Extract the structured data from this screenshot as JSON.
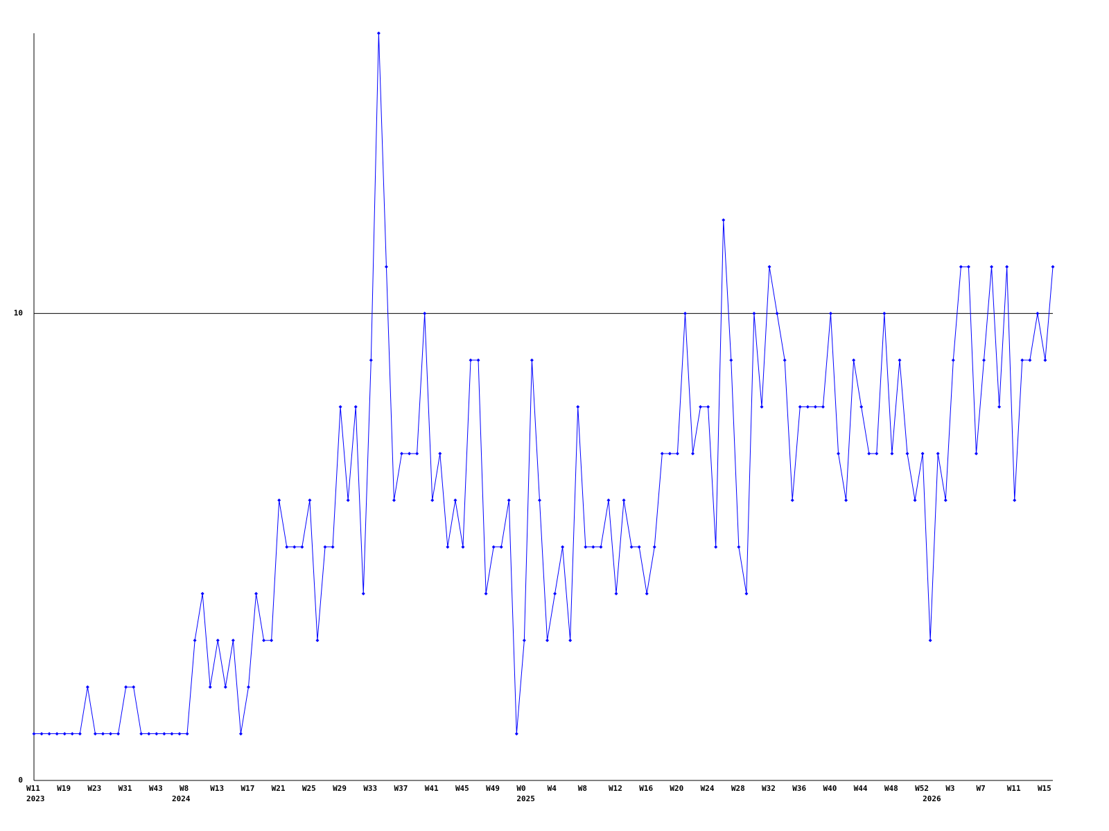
{
  "chart_data": {
    "type": "line",
    "categories": [
      "W11",
      null,
      null,
      null,
      "W19",
      null,
      null,
      null,
      "W23",
      null,
      null,
      null,
      "W31",
      null,
      null,
      null,
      "W43",
      null,
      null,
      null,
      "W8",
      null,
      null,
      null,
      "W13",
      null,
      null,
      null,
      "W17",
      null,
      null,
      null,
      "W21",
      null,
      null,
      null,
      "W25",
      null,
      null,
      null,
      "W29",
      null,
      null,
      null,
      "W33",
      null,
      null,
      null,
      "W37",
      null,
      null,
      null,
      "W41",
      null,
      null,
      null,
      "W45",
      null,
      null,
      null,
      "W49",
      null,
      null,
      null,
      "W0",
      null,
      null,
      null,
      "W4",
      null,
      null,
      null,
      "W8",
      null,
      null,
      null,
      "W12",
      null,
      null,
      null,
      "W16",
      null,
      null,
      null,
      "W20",
      null,
      null,
      null,
      "W24",
      null,
      null,
      null,
      "W28",
      null,
      null,
      null,
      "W32",
      null,
      null,
      null,
      "W36",
      null,
      null,
      null,
      "W40",
      null,
      null,
      null,
      "W44",
      null,
      null,
      null,
      "W48",
      null,
      null,
      null,
      "W52",
      null,
      null,
      null,
      "W3",
      null,
      null,
      null,
      "W7",
      null,
      null,
      null,
      "W11",
      null,
      null,
      null,
      "W15",
      null
    ],
    "category_years": [
      "2023",
      null,
      null,
      null,
      null,
      null,
      null,
      null,
      null,
      null,
      null,
      null,
      null,
      null,
      null,
      null,
      null,
      null,
      null,
      "2024",
      null,
      null,
      null,
      null,
      null,
      null,
      null,
      null,
      null,
      null,
      null,
      null,
      null,
      null,
      null,
      null,
      null,
      null,
      null,
      null,
      null,
      null,
      null,
      null,
      null,
      null,
      null,
      null,
      null,
      null,
      null,
      null,
      null,
      null,
      null,
      null,
      null,
      null,
      null,
      null,
      null,
      null,
      null,
      null,
      "2025",
      null,
      null,
      null,
      null,
      null,
      null,
      null,
      null,
      null,
      null,
      null,
      null,
      null,
      null,
      null,
      null,
      null,
      null,
      null,
      null,
      null,
      null,
      null,
      null,
      null,
      null,
      null,
      null,
      null,
      null,
      null,
      null,
      null,
      null,
      null,
      null,
      null,
      null,
      null,
      null,
      null,
      null,
      null,
      null,
      null,
      null,
      null,
      null,
      null,
      null,
      null,
      null,
      "2026",
      null,
      null,
      null,
      null,
      null,
      null,
      null,
      null,
      null,
      null,
      null,
      null,
      null,
      null,
      null,
      null
    ],
    "values": [
      1,
      1,
      1,
      1,
      1,
      1,
      1,
      2,
      1,
      1,
      1,
      1,
      2,
      2,
      1,
      1,
      1,
      1,
      1,
      1,
      1,
      3,
      4,
      2,
      3,
      2,
      3,
      1,
      2,
      4,
      3,
      3,
      6,
      5,
      5,
      5,
      6,
      3,
      5,
      5,
      8,
      6,
      8,
      4,
      9,
      16,
      11,
      6,
      7,
      7,
      7,
      10,
      6,
      7,
      5,
      6,
      5,
      9,
      9,
      4,
      5,
      5,
      6,
      1,
      3,
      9,
      6,
      3,
      4,
      5,
      3,
      8,
      5,
      5,
      5,
      6,
      4,
      6,
      5,
      5,
      4,
      5,
      7,
      7,
      7,
      10,
      7,
      8,
      8,
      5,
      12,
      9,
      5,
      4,
      10,
      8,
      11,
      10,
      9,
      6,
      8,
      8,
      8,
      8,
      10,
      7,
      6,
      9,
      8,
      7,
      7,
      10,
      7,
      9,
      7,
      6,
      7,
      3,
      7,
      6,
      9,
      11,
      11,
      7,
      9,
      11,
      8,
      11,
      6,
      9,
      9,
      10,
      9,
      11
    ],
    "color": "#0000ff",
    "ylim": [
      0,
      16
    ],
    "yticks": [
      0,
      10
    ],
    "grid": true
  }
}
